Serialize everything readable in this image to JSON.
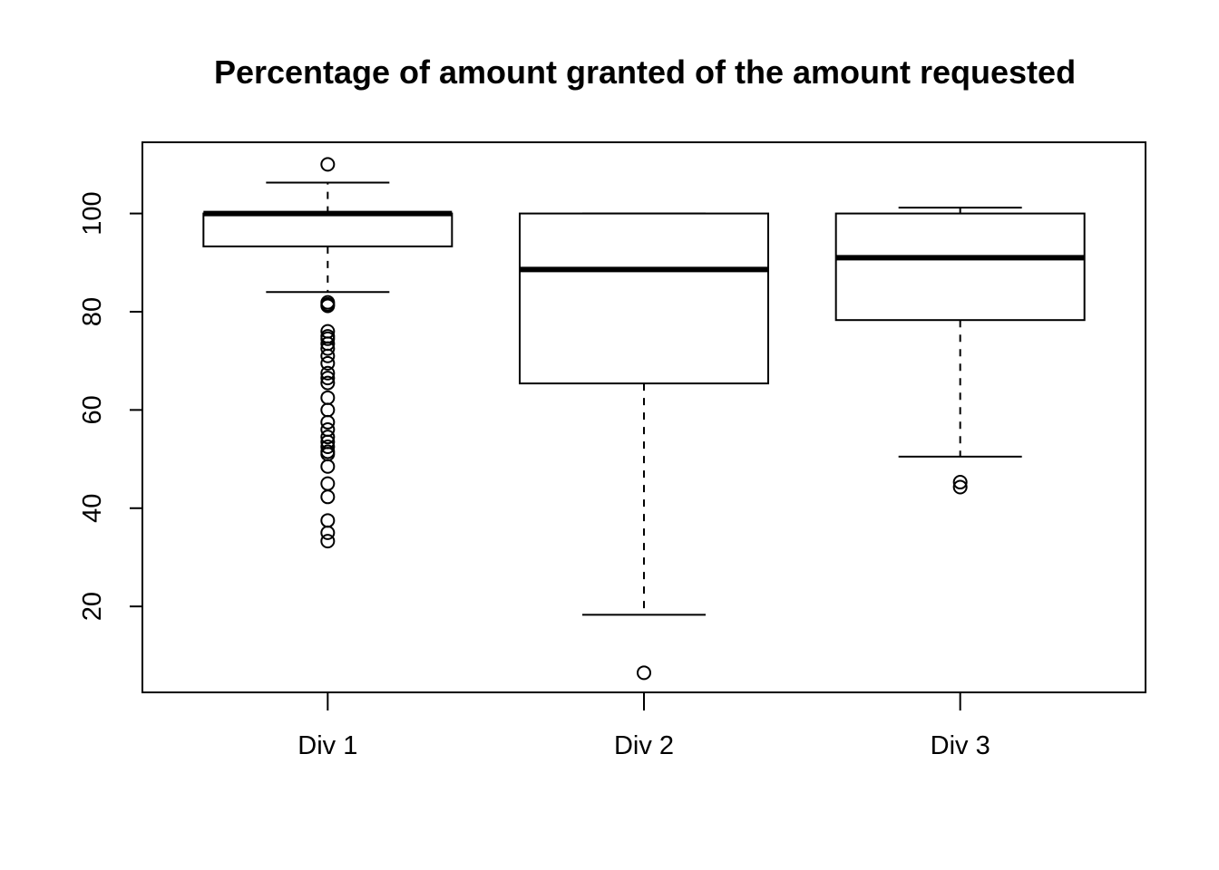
{
  "chart_data": {
    "type": "boxplot",
    "title": "Percentage of amount granted of the amount requested",
    "xlabel": "",
    "ylabel": "",
    "ylim": [
      2.5,
      114.5
    ],
    "y_ticks": [
      20,
      40,
      60,
      80,
      100
    ],
    "grid": false,
    "legend": "none",
    "categories": [
      "Div 1",
      "Div 2",
      "Div 3"
    ],
    "boxes": [
      {
        "name": "Div 1",
        "whisker_low": 84,
        "q1": 93.3,
        "median": 100,
        "q3": 100,
        "whisker_high": 106.3,
        "outliers": [
          110,
          81.9,
          81.5,
          81.2,
          76,
          75,
          74.5,
          73.5,
          72.5,
          71,
          69.5,
          67.5,
          66.5,
          65.5,
          62.5,
          60,
          57.5,
          56,
          54.5,
          53.5,
          52.5,
          51.5,
          51,
          48.5,
          45,
          42.3,
          37.5,
          35,
          33.3
        ]
      },
      {
        "name": "Div 2",
        "whisker_low": 18.3,
        "q1": 65.4,
        "median": 88.6,
        "q3": 100,
        "whisker_high": 100,
        "outliers": [
          6.5
        ]
      },
      {
        "name": "Div 3",
        "whisker_low": 50.5,
        "q1": 78.3,
        "median": 91,
        "q3": 100,
        "whisker_high": 101.2,
        "outliers": [
          45.3,
          44.3
        ]
      }
    ]
  }
}
